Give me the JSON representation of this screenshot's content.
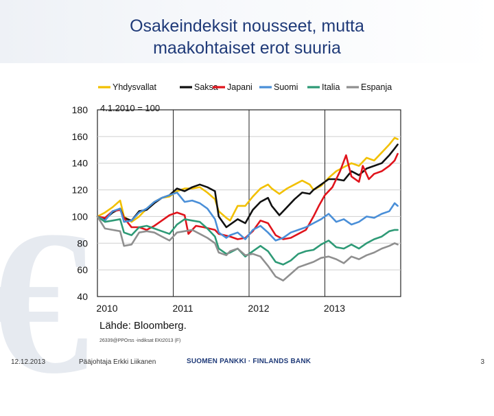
{
  "slide": {
    "title_line1": "Osakeindeksit nousseet, mutta",
    "title_line2": "maakohtaiset erot suuria",
    "date": "12.12.2013",
    "presenter": "Pääjohtaja Erkki Liikanen",
    "bank": "SUOMEN PANKKI · FINLANDS BANK",
    "page_number": "3"
  },
  "chart_data": {
    "type": "line",
    "base_label": "4.1.2010 = 100",
    "source": "Lähde: Bloomberg.",
    "code_note": "26339@PPOrss -indiksat EKt2013 (F)",
    "ylim": [
      40,
      180
    ],
    "yticks": [
      40,
      60,
      80,
      100,
      120,
      140,
      160,
      180
    ],
    "xlim": [
      2010.0,
      2014.0
    ],
    "xticks": [
      {
        "value": 2010.0,
        "label": "2010"
      },
      {
        "value": 2011.0,
        "label": "2011"
      },
      {
        "value": 2012.0,
        "label": "2012"
      },
      {
        "value": 2013.0,
        "label": "2013"
      }
    ],
    "grid": true,
    "legend_position": "top",
    "series": [
      {
        "name": "Yhdysvallat",
        "color": "#f2c000",
        "points": [
          [
            2010.0,
            100
          ],
          [
            2010.1,
            103
          ],
          [
            2010.2,
            107
          ],
          [
            2010.3,
            112
          ],
          [
            2010.35,
            100
          ],
          [
            2010.45,
            96
          ],
          [
            2010.55,
            100
          ],
          [
            2010.65,
            106
          ],
          [
            2010.75,
            111
          ],
          [
            2010.85,
            114
          ],
          [
            2010.95,
            115
          ],
          [
            2011.05,
            119
          ],
          [
            2011.15,
            121
          ],
          [
            2011.25,
            121
          ],
          [
            2011.35,
            122
          ],
          [
            2011.45,
            118
          ],
          [
            2011.55,
            113
          ],
          [
            2011.6,
            104
          ],
          [
            2011.7,
            99
          ],
          [
            2011.75,
            97
          ],
          [
            2011.85,
            108
          ],
          [
            2011.95,
            108
          ],
          [
            2012.05,
            115
          ],
          [
            2012.15,
            121
          ],
          [
            2012.25,
            124
          ],
          [
            2012.3,
            121
          ],
          [
            2012.4,
            117
          ],
          [
            2012.5,
            121
          ],
          [
            2012.6,
            124
          ],
          [
            2012.7,
            127
          ],
          [
            2012.8,
            124
          ],
          [
            2012.85,
            120
          ],
          [
            2012.95,
            123
          ],
          [
            2013.05,
            129
          ],
          [
            2013.15,
            134
          ],
          [
            2013.25,
            137
          ],
          [
            2013.35,
            140
          ],
          [
            2013.45,
            138
          ],
          [
            2013.55,
            144
          ],
          [
            2013.65,
            142
          ],
          [
            2013.75,
            148
          ],
          [
            2013.85,
            154
          ],
          [
            2013.92,
            159
          ],
          [
            2013.96,
            158
          ]
        ]
      },
      {
        "name": "Saksa",
        "color": "#111111",
        "points": [
          [
            2010.0,
            100
          ],
          [
            2010.1,
            98
          ],
          [
            2010.2,
            103
          ],
          [
            2010.3,
            106
          ],
          [
            2010.35,
            99
          ],
          [
            2010.45,
            97
          ],
          [
            2010.55,
            104
          ],
          [
            2010.65,
            105
          ],
          [
            2010.75,
            110
          ],
          [
            2010.85,
            114
          ],
          [
            2010.95,
            116
          ],
          [
            2011.05,
            121
          ],
          [
            2011.15,
            119
          ],
          [
            2011.25,
            122
          ],
          [
            2011.35,
            124
          ],
          [
            2011.45,
            122
          ],
          [
            2011.55,
            119
          ],
          [
            2011.6,
            100
          ],
          [
            2011.7,
            92
          ],
          [
            2011.75,
            94
          ],
          [
            2011.85,
            98
          ],
          [
            2011.95,
            95
          ],
          [
            2012.05,
            105
          ],
          [
            2012.15,
            111
          ],
          [
            2012.25,
            114
          ],
          [
            2012.3,
            108
          ],
          [
            2012.4,
            101
          ],
          [
            2012.5,
            107
          ],
          [
            2012.6,
            113
          ],
          [
            2012.7,
            118
          ],
          [
            2012.8,
            117
          ],
          [
            2012.85,
            120
          ],
          [
            2012.95,
            124
          ],
          [
            2013.05,
            128
          ],
          [
            2013.15,
            128
          ],
          [
            2013.25,
            127
          ],
          [
            2013.35,
            134
          ],
          [
            2013.45,
            131
          ],
          [
            2013.55,
            136
          ],
          [
            2013.65,
            138
          ],
          [
            2013.75,
            140
          ],
          [
            2013.85,
            146
          ],
          [
            2013.92,
            151
          ],
          [
            2013.96,
            154
          ]
        ]
      },
      {
        "name": "Japani",
        "color": "#e0141c",
        "points": [
          [
            2010.0,
            100
          ],
          [
            2010.1,
            99
          ],
          [
            2010.2,
            104
          ],
          [
            2010.3,
            105
          ],
          [
            2010.35,
            99
          ],
          [
            2010.45,
            92
          ],
          [
            2010.55,
            92
          ],
          [
            2010.65,
            90
          ],
          [
            2010.75,
            93
          ],
          [
            2010.85,
            97
          ],
          [
            2010.95,
            101
          ],
          [
            2011.05,
            103
          ],
          [
            2011.15,
            101
          ],
          [
            2011.2,
            87
          ],
          [
            2011.3,
            93
          ],
          [
            2011.4,
            92
          ],
          [
            2011.55,
            90
          ],
          [
            2011.6,
            87
          ],
          [
            2011.75,
            85
          ],
          [
            2011.85,
            83
          ],
          [
            2011.95,
            84
          ],
          [
            2012.05,
            89
          ],
          [
            2012.15,
            97
          ],
          [
            2012.25,
            95
          ],
          [
            2012.35,
            86
          ],
          [
            2012.45,
            83
          ],
          [
            2012.55,
            84
          ],
          [
            2012.65,
            87
          ],
          [
            2012.75,
            90
          ],
          [
            2012.85,
            100
          ],
          [
            2012.92,
            108
          ],
          [
            2013.0,
            116
          ],
          [
            2013.1,
            122
          ],
          [
            2013.2,
            134
          ],
          [
            2013.28,
            146
          ],
          [
            2013.35,
            130
          ],
          [
            2013.45,
            126
          ],
          [
            2013.5,
            138
          ],
          [
            2013.58,
            128
          ],
          [
            2013.65,
            132
          ],
          [
            2013.75,
            134
          ],
          [
            2013.85,
            138
          ],
          [
            2013.92,
            142
          ],
          [
            2013.96,
            147
          ]
        ]
      },
      {
        "name": "Suomi",
        "color": "#4a8fd8",
        "points": [
          [
            2010.0,
            100
          ],
          [
            2010.1,
            97
          ],
          [
            2010.2,
            104
          ],
          [
            2010.3,
            106
          ],
          [
            2010.35,
            96
          ],
          [
            2010.45,
            97
          ],
          [
            2010.55,
            103
          ],
          [
            2010.65,
            106
          ],
          [
            2010.75,
            111
          ],
          [
            2010.85,
            114
          ],
          [
            2010.95,
            116
          ],
          [
            2011.05,
            118
          ],
          [
            2011.15,
            111
          ],
          [
            2011.25,
            112
          ],
          [
            2011.35,
            110
          ],
          [
            2011.45,
            106
          ],
          [
            2011.55,
            98
          ],
          [
            2011.6,
            88
          ],
          [
            2011.7,
            84
          ],
          [
            2011.75,
            86
          ],
          [
            2011.85,
            88
          ],
          [
            2011.95,
            83
          ],
          [
            2012.05,
            90
          ],
          [
            2012.15,
            93
          ],
          [
            2012.25,
            88
          ],
          [
            2012.35,
            82
          ],
          [
            2012.45,
            84
          ],
          [
            2012.55,
            88
          ],
          [
            2012.65,
            90
          ],
          [
            2012.75,
            92
          ],
          [
            2012.85,
            95
          ],
          [
            2012.95,
            98
          ],
          [
            2013.05,
            102
          ],
          [
            2013.15,
            96
          ],
          [
            2013.25,
            98
          ],
          [
            2013.35,
            94
          ],
          [
            2013.45,
            96
          ],
          [
            2013.55,
            100
          ],
          [
            2013.65,
            99
          ],
          [
            2013.75,
            102
          ],
          [
            2013.85,
            104
          ],
          [
            2013.92,
            110
          ],
          [
            2013.96,
            108
          ]
        ]
      },
      {
        "name": "Italia",
        "color": "#2e9a76",
        "points": [
          [
            2010.0,
            100
          ],
          [
            2010.1,
            96
          ],
          [
            2010.2,
            97
          ],
          [
            2010.3,
            98
          ],
          [
            2010.35,
            88
          ],
          [
            2010.45,
            86
          ],
          [
            2010.55,
            92
          ],
          [
            2010.65,
            93
          ],
          [
            2010.75,
            91
          ],
          [
            2010.85,
            89
          ],
          [
            2010.95,
            87
          ],
          [
            2011.05,
            94
          ],
          [
            2011.15,
            98
          ],
          [
            2011.25,
            97
          ],
          [
            2011.35,
            96
          ],
          [
            2011.45,
            91
          ],
          [
            2011.55,
            85
          ],
          [
            2011.6,
            76
          ],
          [
            2011.7,
            72
          ],
          [
            2011.75,
            73
          ],
          [
            2011.85,
            76
          ],
          [
            2011.95,
            70
          ],
          [
            2012.05,
            74
          ],
          [
            2012.15,
            78
          ],
          [
            2012.25,
            74
          ],
          [
            2012.35,
            66
          ],
          [
            2012.45,
            64
          ],
          [
            2012.55,
            67
          ],
          [
            2012.65,
            72
          ],
          [
            2012.75,
            74
          ],
          [
            2012.85,
            75
          ],
          [
            2012.95,
            79
          ],
          [
            2013.05,
            82
          ],
          [
            2013.15,
            77
          ],
          [
            2013.25,
            76
          ],
          [
            2013.35,
            79
          ],
          [
            2013.45,
            76
          ],
          [
            2013.55,
            80
          ],
          [
            2013.65,
            83
          ],
          [
            2013.75,
            85
          ],
          [
            2013.85,
            89
          ],
          [
            2013.92,
            90
          ],
          [
            2013.96,
            90
          ]
        ]
      },
      {
        "name": "Espanja",
        "color": "#8f8f8f",
        "points": [
          [
            2010.0,
            100
          ],
          [
            2010.1,
            91
          ],
          [
            2010.2,
            90
          ],
          [
            2010.3,
            89
          ],
          [
            2010.35,
            78
          ],
          [
            2010.45,
            79
          ],
          [
            2010.55,
            88
          ],
          [
            2010.65,
            89
          ],
          [
            2010.75,
            88
          ],
          [
            2010.85,
            85
          ],
          [
            2010.95,
            82
          ],
          [
            2011.05,
            88
          ],
          [
            2011.15,
            89
          ],
          [
            2011.25,
            90
          ],
          [
            2011.35,
            87
          ],
          [
            2011.45,
            84
          ],
          [
            2011.55,
            80
          ],
          [
            2011.6,
            73
          ],
          [
            2011.7,
            71
          ],
          [
            2011.75,
            74
          ],
          [
            2011.85,
            76
          ],
          [
            2011.95,
            71
          ],
          [
            2012.05,
            72
          ],
          [
            2012.15,
            70
          ],
          [
            2012.25,
            63
          ],
          [
            2012.35,
            55
          ],
          [
            2012.45,
            52
          ],
          [
            2012.55,
            57
          ],
          [
            2012.65,
            62
          ],
          [
            2012.75,
            64
          ],
          [
            2012.85,
            66
          ],
          [
            2012.95,
            69
          ],
          [
            2013.05,
            70
          ],
          [
            2013.15,
            68
          ],
          [
            2013.25,
            65
          ],
          [
            2013.35,
            70
          ],
          [
            2013.45,
            68
          ],
          [
            2013.55,
            71
          ],
          [
            2013.65,
            73
          ],
          [
            2013.75,
            76
          ],
          [
            2013.85,
            78
          ],
          [
            2013.92,
            80
          ],
          [
            2013.96,
            79
          ]
        ]
      }
    ]
  }
}
